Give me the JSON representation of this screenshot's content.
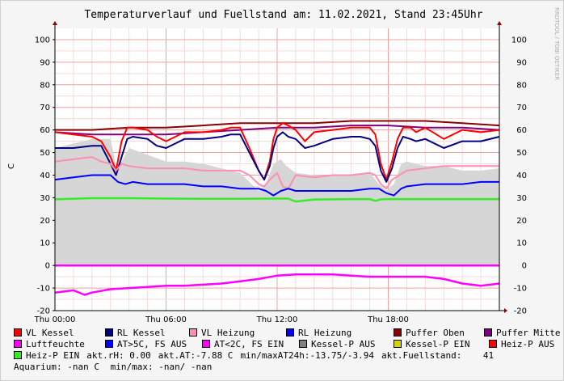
{
  "title": "Temperaturverlauf und Fuellstand am: 11.02.2021, Stand 23:45Uhr",
  "watermark": "RRDTOOL / TOBI OETIKER",
  "colors": {
    "vl_kessel": "#ff0000",
    "rl_kessel": "#000080",
    "vl_heizung": "#ff8fb0",
    "rl_heizung": "#0000ff",
    "puffer_oben": "#8b0000",
    "puffer_mitte": "#800080",
    "luftfeuchte": "#ff00ff",
    "at_gt5": "#0000ff",
    "at_lt2": "#ff00ff",
    "kessel_p_aus": "#808080",
    "kessel_p_ein": "#d4d400",
    "heiz_p_aus": "#ff0000",
    "heiz_p_ein": "#33ee22",
    "area": "#d6d6d6"
  },
  "chart_data": {
    "type": "line",
    "title": "Temperaturverlauf und Fuellstand am: 11.02.2021, Stand 23:45Uhr",
    "ylabel": "C",
    "ylim": [
      -20,
      105
    ],
    "yticks": [
      100,
      90,
      80,
      70,
      60,
      50,
      40,
      30,
      20,
      10,
      0,
      -10,
      -20
    ],
    "xlim": [
      0,
      24
    ],
    "xticks": [
      {
        "x": 0,
        "label": "Thu 00:00"
      },
      {
        "x": 6,
        "label": "Thu 06:00"
      },
      {
        "x": 12,
        "label": "Thu 12:00"
      },
      {
        "x": 18,
        "label": "Thu 18:00"
      }
    ],
    "grid": true,
    "series": [
      {
        "name": "Kessel-P AUS",
        "kind": "area",
        "color": "#d6d6d6",
        "x": [
          0,
          1,
          2,
          3,
          3.3,
          3.6,
          4,
          5,
          6,
          7,
          8,
          9,
          10,
          10.5,
          11,
          11.4,
          11.8,
          12.2,
          12.5,
          13,
          14,
          15,
          16,
          17,
          17.5,
          17.9,
          18.3,
          18.7,
          19,
          20,
          21,
          22,
          23,
          24
        ],
        "y": [
          52,
          54,
          56,
          56,
          44,
          46,
          52,
          49,
          46,
          46,
          45,
          43,
          41,
          37,
          33,
          36,
          45,
          47,
          44,
          41,
          40,
          40,
          40,
          41,
          36,
          33,
          36,
          45,
          46,
          44,
          44,
          42,
          42,
          43
        ]
      },
      {
        "name": "Puffer Oben",
        "color": "#8b0000",
        "x": [
          0,
          2,
          4,
          6,
          8,
          10,
          12,
          14,
          16,
          18,
          20,
          22,
          24
        ],
        "y": [
          60,
          60,
          61,
          61,
          62,
          63,
          63,
          63,
          64,
          64,
          64,
          63,
          62
        ]
      },
      {
        "name": "Puffer Mitte",
        "color": "#800080",
        "x": [
          0,
          2,
          4,
          6,
          8,
          10,
          12,
          14,
          16,
          18,
          20,
          22,
          24
        ],
        "y": [
          59,
          58,
          58,
          58,
          59,
          60,
          61,
          61,
          62,
          62,
          61,
          61,
          60
        ]
      },
      {
        "name": "VL Kessel",
        "color": "#ff0000",
        "x": [
          0,
          1,
          2,
          2.5,
          3,
          3.3,
          3.6,
          3.9,
          4.2,
          5,
          5.5,
          6,
          6.5,
          7,
          8,
          9,
          9.5,
          10,
          10.5,
          11,
          11.3,
          11.6,
          11.8,
          12,
          12.3,
          12.6,
          13,
          13.5,
          14,
          15,
          16,
          16.5,
          17,
          17.3,
          17.6,
          17.9,
          18.2,
          18.5,
          18.8,
          19.2,
          19.5,
          20,
          21,
          22,
          23,
          24
        ],
        "y": [
          59,
          58,
          57,
          55,
          48,
          42,
          55,
          61,
          61,
          60,
          57,
          55,
          57,
          59,
          59,
          60,
          61,
          61,
          52,
          42,
          38,
          46,
          56,
          61,
          63,
          62,
          60,
          55,
          59,
          60,
          61,
          61,
          61,
          58,
          45,
          38,
          46,
          56,
          61,
          61,
          59,
          61,
          56,
          60,
          59,
          60
        ]
      },
      {
        "name": "RL Kessel",
        "color": "#000080",
        "x": [
          0,
          1,
          2,
          2.5,
          3,
          3.3,
          3.6,
          3.9,
          4.2,
          5,
          5.5,
          6,
          6.5,
          7,
          8,
          9,
          9.5,
          10,
          10.5,
          11,
          11.3,
          11.6,
          11.8,
          12,
          12.3,
          12.6,
          13,
          13.5,
          14,
          15,
          16,
          16.5,
          17,
          17.3,
          17.6,
          17.9,
          18.2,
          18.5,
          18.8,
          19.2,
          19.5,
          20,
          21,
          22,
          23,
          24
        ],
        "y": [
          52,
          52,
          53,
          53,
          45,
          40,
          48,
          56,
          57,
          56,
          53,
          52,
          54,
          56,
          56,
          57,
          58,
          58,
          50,
          42,
          38,
          44,
          52,
          57,
          59,
          57,
          56,
          52,
          53,
          56,
          57,
          57,
          56,
          53,
          42,
          37,
          43,
          52,
          57,
          56,
          55,
          56,
          52,
          55,
          55,
          57
        ]
      },
      {
        "name": "VL Heizung",
        "color": "#ff8fb0",
        "x": [
          0,
          1,
          2,
          2.5,
          3,
          3.3,
          3.6,
          4,
          5,
          6,
          7,
          8,
          9,
          10,
          10.5,
          11,
          11.3,
          11.6,
          12,
          12.3,
          12.6,
          13,
          14,
          15,
          16,
          17,
          17.3,
          17.6,
          17.9,
          18.2,
          18.6,
          19,
          20,
          21,
          22,
          23,
          24
        ],
        "y": [
          46,
          47,
          48,
          46,
          45,
          42,
          45,
          44,
          43,
          43,
          43,
          42,
          42,
          42,
          40,
          36,
          35,
          38,
          41,
          35,
          34,
          40,
          39,
          40,
          40,
          41,
          40,
          36,
          34,
          38,
          40,
          42,
          43,
          44,
          44,
          44,
          44
        ]
      },
      {
        "name": "RL Heizung",
        "color": "#0000ff",
        "x": [
          0,
          1,
          2,
          3,
          3.4,
          3.8,
          4.2,
          5,
          6,
          7,
          8,
          9,
          10,
          11,
          11.4,
          11.8,
          12.2,
          12.6,
          13,
          14,
          15,
          16,
          17,
          17.5,
          17.9,
          18.3,
          18.7,
          19,
          20,
          21,
          22,
          23,
          24
        ],
        "y": [
          38,
          39,
          40,
          40,
          37,
          36,
          37,
          36,
          36,
          36,
          35,
          35,
          34,
          34,
          33,
          31,
          33,
          34,
          33,
          33,
          33,
          33,
          34,
          34,
          32,
          31,
          34,
          35,
          36,
          36,
          36,
          37,
          37
        ]
      },
      {
        "name": "Heiz-P EIN",
        "color": "#33ee22",
        "x": [
          0,
          2,
          4,
          6,
          8,
          10,
          12,
          12.6,
          13,
          14,
          16,
          17,
          17.3,
          17.6,
          18,
          20,
          22,
          24
        ],
        "y": [
          29.3,
          29.8,
          29.8,
          29.6,
          29.5,
          29.5,
          29.6,
          29.6,
          28.3,
          29.2,
          29.4,
          29.4,
          28.6,
          29.3,
          29.4,
          29.4,
          29.4,
          29.4
        ]
      },
      {
        "name": "AT<2C, FS EIN",
        "color": "#ff00ff",
        "x": [
          0,
          24
        ],
        "y": [
          0,
          0
        ]
      },
      {
        "name": "Luftfeuchte",
        "color": "#ff00ff",
        "x": [
          0,
          1,
          1.6,
          2,
          3,
          4,
          5,
          6,
          7,
          8,
          9,
          10,
          11,
          12,
          13,
          14,
          15,
          16,
          17,
          18,
          19,
          20,
          21,
          22,
          23,
          23.5,
          24
        ],
        "y": [
          -12,
          -11,
          -13,
          -12,
          -10.5,
          -10,
          -9.5,
          -9,
          -9,
          -8.5,
          -8,
          -7,
          -6,
          -4.5,
          -4,
          -4,
          -4,
          -4.5,
          -5,
          -5,
          -5,
          -5,
          -6,
          -8,
          -9,
          -8.5,
          -8
        ]
      }
    ]
  },
  "legend": [
    {
      "label": "VL Kessel",
      "color": "#ff0000"
    },
    {
      "label": "RL Kessel",
      "color": "#000080"
    },
    {
      "label": "VL Heizung",
      "color": "#ff8fb0"
    },
    {
      "label": "RL Heizung",
      "color": "#0000ff"
    },
    {
      "label": "Puffer Oben",
      "color": "#8b0000"
    },
    {
      "label": "Puffer Mitte",
      "color": "#800080"
    },
    {
      "label": "Luftfeuchte",
      "color": "#ff00ff"
    },
    {
      "label": "AT>5C, FS AUS",
      "color": "#0000ff"
    },
    {
      "label": "AT<2C, FS EIN",
      "color": "#ff00ff"
    },
    {
      "label": "Kessel-P AUS",
      "color": "#808080"
    },
    {
      "label": "Kessel-P EIN",
      "color": "#d4d400"
    },
    {
      "label": "Heiz-P AUS",
      "color": "#ff0000"
    },
    {
      "label": "Heiz-P EIN",
      "color": "#33ee22"
    }
  ],
  "info": {
    "rh": "akt.rH: 0.00",
    "at": "akt.AT:-7.88 C",
    "minmax_at": "min/maxAT24h:-13.75/-3.94",
    "fuellstand": "akt.Fuellstand:    41",
    "aquarium": "Aquarium: -nan C",
    "aquarium_minmax": "min/max: -nan/ -nan"
  }
}
